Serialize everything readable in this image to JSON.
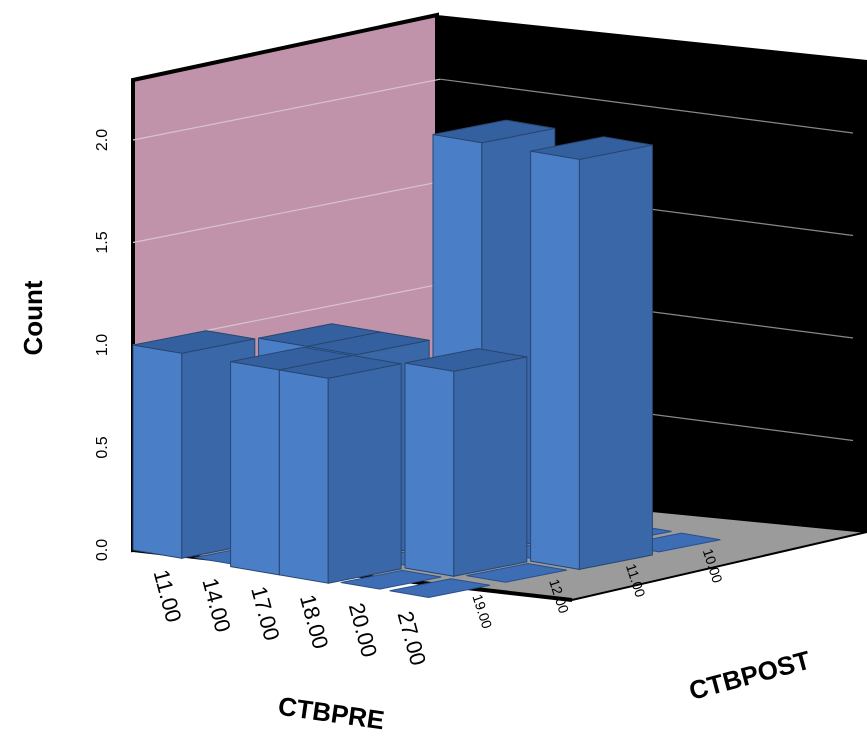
{
  "chart_data": {
    "type": "bar3d",
    "ylabel": "Count",
    "xlabel": "CTBPRE",
    "zlabel": "CTBPOST",
    "y_ticks": [
      "0.0",
      "0.5",
      "1.0",
      "1.5",
      "2.0"
    ],
    "ylim": [
      0,
      2.2
    ],
    "x_categories": [
      "11.00",
      "14.00",
      "17.00",
      "18.00",
      "20.00",
      "27.00"
    ],
    "z_categories": [
      "19.00",
      "12.00",
      "11.00",
      "10.00"
    ],
    "bars": [
      {
        "x": "11.00",
        "z": "19.00",
        "count": 1
      },
      {
        "x": "14.00",
        "z": "12.00",
        "count": 1
      },
      {
        "x": "17.00",
        "z": "12.00",
        "count": 1
      },
      {
        "x": "17.00",
        "z": "19.00",
        "count": 1
      },
      {
        "x": "18.00",
        "z": "19.00",
        "count": 1
      },
      {
        "x": "18.00",
        "z": "11.00",
        "count": 2
      },
      {
        "x": "20.00",
        "z": "12.00",
        "count": 1
      },
      {
        "x": "27.00",
        "z": "11.00",
        "count": 2
      }
    ],
    "colors": {
      "bar_front": "#4a7fc8",
      "bar_side": "#3a67a8",
      "bar_top": "#3560a0",
      "left_wall": "#c093aa",
      "back_wall": "#000000",
      "floor": "#9b9b9b"
    }
  }
}
